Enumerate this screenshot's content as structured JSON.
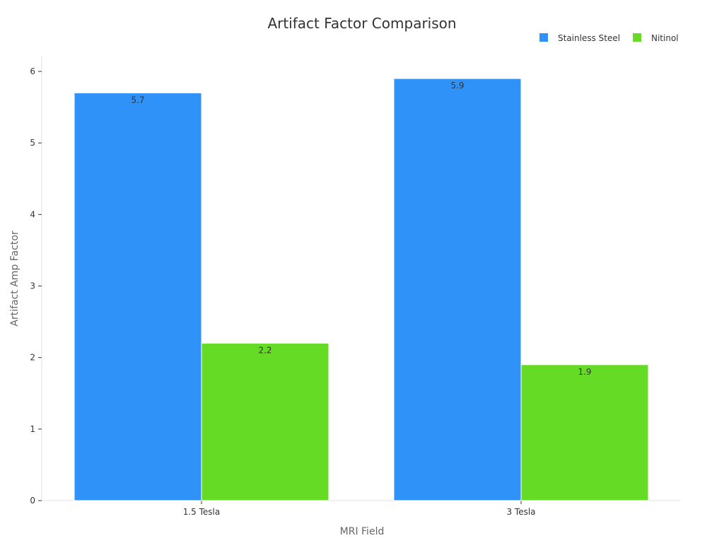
{
  "chart_data": {
    "type": "bar",
    "title": "Artifact Factor Comparison",
    "xlabel": "MRI Field",
    "ylabel": "Artifact Amp Factor",
    "categories": [
      "1.5 Tesla",
      "3 Tesla"
    ],
    "series": [
      {
        "name": "Stainless Steel",
        "values": [
          5.7,
          5.9
        ],
        "color": "#2f92f8"
      },
      {
        "name": "Nitinol",
        "values": [
          2.2,
          1.9
        ],
        "color": "#66db26"
      }
    ],
    "ylim": [
      0,
      6
    ],
    "yticks": [
      "0",
      "1",
      "2",
      "3",
      "4",
      "5",
      "6"
    ],
    "data_labels": [
      [
        "5.7",
        "5.9"
      ],
      [
        "2.2",
        "1.9"
      ]
    ],
    "legend_position": "top-right",
    "grid": false
  }
}
